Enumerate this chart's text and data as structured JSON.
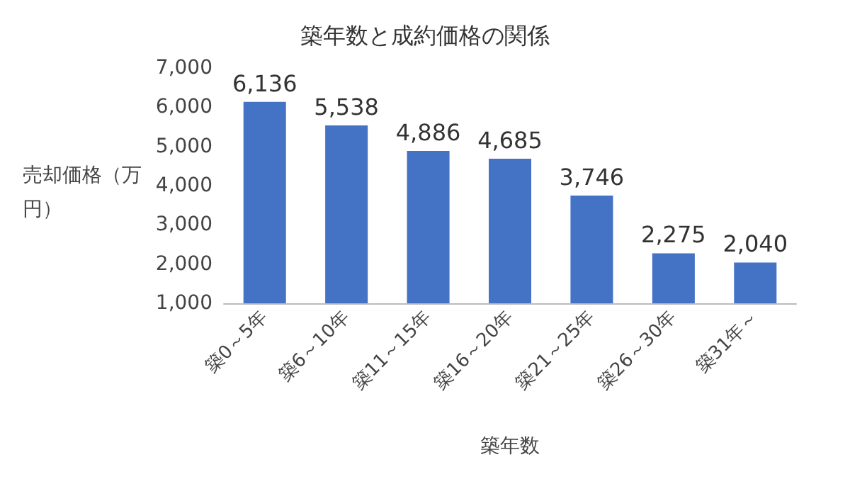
{
  "chart_data": {
    "type": "bar",
    "title": "築年数と成約価格の関係",
    "xlabel": "築年数",
    "ylabel": "売却価格（万円）",
    "categories": [
      "築0～5年",
      "築6～10年",
      "築11～15年",
      "築16～20年",
      "築21～25年",
      "築26～30年",
      "築31年～"
    ],
    "values": [
      6136,
      5538,
      4886,
      4685,
      3746,
      2275,
      2040
    ],
    "value_labels": [
      "6,136",
      "5,538",
      "4,886",
      "4,685",
      "3,746",
      "2,275",
      "2,040"
    ],
    "color": "#4472c4",
    "ylim": [
      1000,
      7000
    ],
    "grid": false,
    "yticks": [
      {
        "value": 1000,
        "label": "1,000"
      },
      {
        "value": 2000,
        "label": "2,000"
      },
      {
        "value": 3000,
        "label": "3,000"
      },
      {
        "value": 4000,
        "label": "4,000"
      },
      {
        "value": 5000,
        "label": "5,000"
      },
      {
        "value": 6000,
        "label": "6,000"
      },
      {
        "value": 7000,
        "label": "7,000"
      }
    ]
  }
}
